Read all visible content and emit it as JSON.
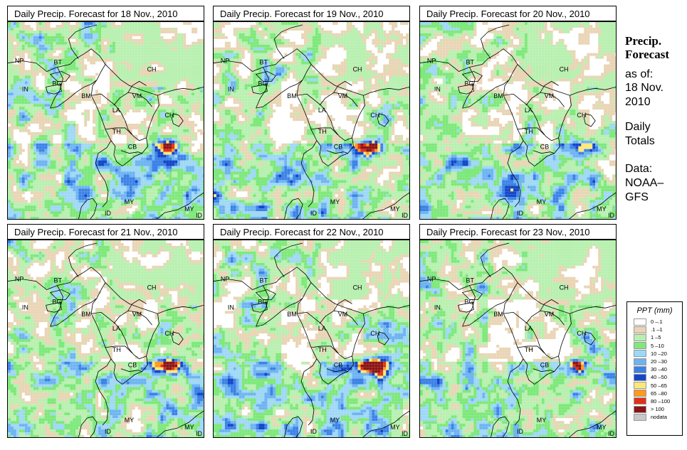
{
  "panels": [
    {
      "title": "Daily Precip. Forecast for  18 Nov., 2010",
      "intensity": 1.0,
      "seed": 11
    },
    {
      "title": "Daily Precip. Forecast for  19 Nov., 2010",
      "intensity": 0.9,
      "seed": 23
    },
    {
      "title": "Daily Precip. Forecast for  20 Nov., 2010",
      "intensity": 0.7,
      "seed": 37
    },
    {
      "title": "Daily Precip. Forecast for  21 Nov., 2010",
      "intensity": 0.55,
      "seed": 41
    },
    {
      "title": "Daily Precip. Forecast for  22 Nov., 2010",
      "intensity": 0.8,
      "seed": 53
    },
    {
      "title": "Daily Precip. Forecast for  23 Nov., 2010",
      "intensity": 0.5,
      "seed": 67
    }
  ],
  "country_labels": [
    "NP",
    "BT",
    "BG",
    "IN",
    "BM",
    "CH",
    "VM",
    "LA",
    "TH",
    "CB",
    "CH",
    "MY",
    "MY",
    "ID",
    "ID"
  ],
  "sidebar": {
    "title_line1": "Precip.",
    "title_line2": "Forecast",
    "asof_label": "as of:",
    "asof_date_line1": "18 Nov.",
    "asof_date_line2": "2010",
    "totals_line1": "Daily",
    "totals_line2": "Totals",
    "data_line1": "Data:",
    "data_line2": "NOAA–",
    "data_line3": "GFS"
  },
  "legend": {
    "title": "PPT (mm)",
    "items": [
      {
        "label": "0 –.1",
        "color": "#ffffff"
      },
      {
        "label": ".1 –1",
        "color": "#e9d5b5"
      },
      {
        "label": "1 –5",
        "color": "#b8f0b0"
      },
      {
        "label": "5 –10",
        "color": "#7ee87a"
      },
      {
        "label": "10 –20",
        "color": "#9fd8f5"
      },
      {
        "label": "20 –30",
        "color": "#6eb4f0"
      },
      {
        "label": "30 –40",
        "color": "#3c82e6"
      },
      {
        "label": "40 –50",
        "color": "#1446c8"
      },
      {
        "label": "50 –65",
        "color": "#ffe878"
      },
      {
        "label": "65 –80",
        "color": "#ff9a1e"
      },
      {
        "label": "80 –100",
        "color": "#e03218"
      },
      {
        "label": "> 100",
        "color": "#8c1414"
      },
      {
        "label": "nodata",
        "color": "#c8c8c8"
      }
    ]
  }
}
